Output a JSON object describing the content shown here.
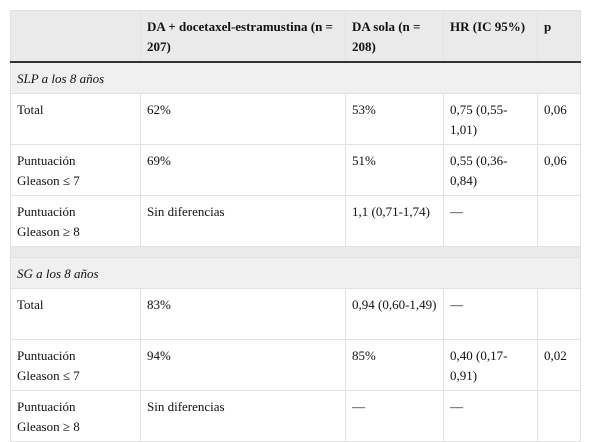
{
  "table": {
    "header": [
      null,
      "DA + docetaxel-estramustina (n = 207)",
      "DA sola (n = 208)",
      "HR (IC 95%)",
      "p"
    ],
    "sections": [
      {
        "title": "SLP a los 8 años",
        "rows": [
          [
            "Total",
            "62%",
            "53%",
            "0,75 (0,55-1,01)",
            "0,06"
          ],
          [
            "Puntuación Gleason ≤ 7",
            "69%",
            "51%",
            "0,55 (0,36-0,84)",
            "0,06"
          ],
          [
            "Puntuación Gleason ≥ 8",
            "Sin diferencias",
            "1,1 (0,71-1,74)",
            "—",
            null
          ]
        ]
      },
      {
        "title": "SG a los 8 años",
        "rows": [
          [
            "Total",
            "83%",
            "0,94 (0,60-1,49)",
            "—",
            null
          ],
          [
            "Puntuación Gleason ≤ 7",
            "94%",
            "85%",
            "0,40 (0,17-0,91)",
            "0,02"
          ],
          [
            "Puntuación Gleason ≥ 8",
            "Sin diferencias",
            "—",
            "—",
            null
          ]
        ]
      }
    ]
  }
}
